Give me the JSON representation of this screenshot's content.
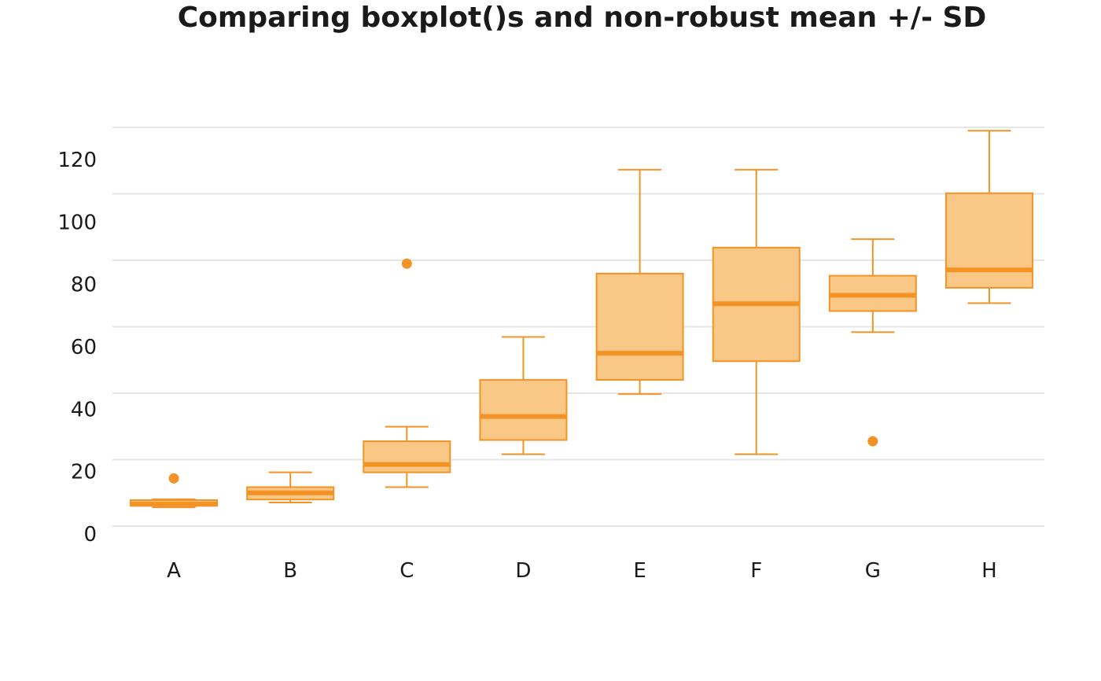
{
  "chart_data": {
    "type": "boxplot",
    "title": "Comparing boxplot()s and non-robust mean +/- SD",
    "xlabel": "",
    "ylabel": "",
    "ylim": [
      -6,
      126
    ],
    "yticks": [
      0,
      20,
      40,
      60,
      80,
      100,
      120
    ],
    "grid": true,
    "color": "#f39325",
    "fill_color": "#f9c886",
    "categories": [
      "A",
      "B",
      "C",
      "D",
      "E",
      "F",
      "G",
      "H"
    ],
    "boxes": [
      {
        "category": "A",
        "whisker_low": 0.2,
        "q1": 0.7,
        "median": 1.3,
        "q3": 2.6,
        "whisker_high": 2.9,
        "outliers": [
          9.8
        ]
      },
      {
        "category": "B",
        "whisker_low": 1.8,
        "q1": 2.8,
        "median": 5.0,
        "q3": 6.9,
        "whisker_high": 11.8,
        "outliers": []
      },
      {
        "category": "C",
        "whisker_low": 6.9,
        "q1": 11.8,
        "median": 14.4,
        "q3": 22.1,
        "whisker_high": 26.9,
        "outliers": [
          80.9
        ]
      },
      {
        "category": "D",
        "whisker_low": 17.8,
        "q1": 22.5,
        "median": 30.3,
        "q3": 42.4,
        "whisker_high": 56.6,
        "outliers": []
      },
      {
        "category": "E",
        "whisker_low": 37.7,
        "q1": 42.4,
        "median": 51.2,
        "q3": 77.6,
        "whisker_high": 112.0,
        "outliers": []
      },
      {
        "category": "F",
        "whisker_low": 17.8,
        "q1": 48.6,
        "median": 67.6,
        "q3": 86.2,
        "whisker_high": 112.0,
        "outliers": []
      },
      {
        "category": "G",
        "whisker_low": 58.2,
        "q1": 65.2,
        "median": 70.4,
        "q3": 76.9,
        "whisker_high": 89.0,
        "outliers": [
          22.1
        ]
      },
      {
        "category": "H",
        "whisker_low": 67.8,
        "q1": 72.9,
        "median": 78.8,
        "q3": 104.2,
        "whisker_high": 124.9,
        "outliers": []
      }
    ]
  }
}
